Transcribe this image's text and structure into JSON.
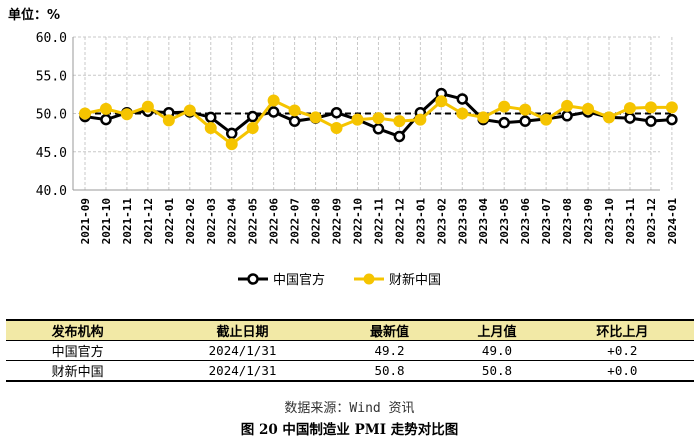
{
  "unit_label": "单位：%",
  "chart_data": {
    "type": "line",
    "x": [
      "2021-09",
      "2021-10",
      "2021-11",
      "2021-12",
      "2022-01",
      "2022-02",
      "2022-03",
      "2022-04",
      "2022-05",
      "2022-06",
      "2022-07",
      "2022-08",
      "2022-09",
      "2022-10",
      "2022-11",
      "2022-12",
      "2023-01",
      "2023-02",
      "2023-03",
      "2023-04",
      "2023-05",
      "2023-06",
      "2023-07",
      "2023-08",
      "2023-09",
      "2023-10",
      "2023-11",
      "2023-12",
      "2024-01"
    ],
    "series": [
      {
        "name": "中国官方",
        "color": "#000000",
        "values": [
          49.6,
          49.2,
          50.1,
          50.3,
          50.1,
          50.2,
          49.5,
          47.4,
          49.6,
          50.2,
          49.0,
          49.4,
          50.1,
          49.2,
          48.0,
          47.0,
          50.1,
          52.6,
          51.9,
          49.2,
          48.8,
          49.0,
          49.3,
          49.7,
          50.2,
          49.5,
          49.4,
          49.0,
          49.2
        ]
      },
      {
        "name": "财新中国",
        "color": "#f5c400",
        "values": [
          50.0,
          50.6,
          49.9,
          50.9,
          49.1,
          50.4,
          48.1,
          46.0,
          48.1,
          51.7,
          50.4,
          49.5,
          48.1,
          49.2,
          49.4,
          49.0,
          49.2,
          51.6,
          50.0,
          49.5,
          50.9,
          50.5,
          49.2,
          51.0,
          50.6,
          49.5,
          50.7,
          50.8,
          50.8
        ]
      }
    ],
    "reference_line": 50,
    "ylim": [
      40,
      60
    ],
    "yticks": [
      "40.0",
      "45.0",
      "50.0",
      "55.0",
      "60.0"
    ],
    "grid": true,
    "legend": "bottom"
  },
  "table": {
    "headers": [
      "发布机构",
      "截止日期",
      "最新值",
      "上月值",
      "环比上月"
    ],
    "rows": [
      [
        "中国官方",
        "2024/1/31",
        "49.2",
        "49.0",
        "+0.2"
      ],
      [
        "财新中国",
        "2024/1/31",
        "50.8",
        "50.8",
        "+0.0"
      ]
    ]
  },
  "source": "数据来源：Wind 资讯",
  "caption": "图 20   中国制造业 PMI 走势对比图"
}
